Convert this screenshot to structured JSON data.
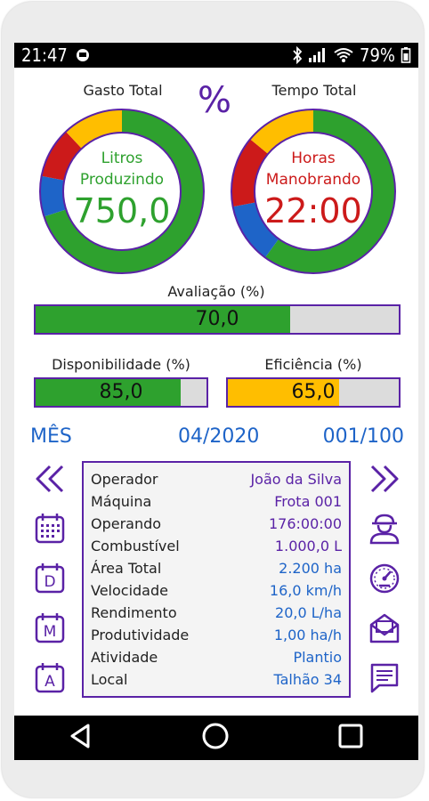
{
  "status_bar": {
    "time": "21:47",
    "battery": "79%",
    "icons": [
      "app-notification-icon",
      "bluetooth-icon",
      "signal-icon",
      "wifi-icon",
      "battery-icon"
    ]
  },
  "gauges": {
    "left": {
      "title": "Gasto Total",
      "line1": "Litros",
      "line2": "Produzindo",
      "value": "750,0",
      "segments": [
        {
          "color": "#2ea12e",
          "fraction": 0.7
        },
        {
          "color": "#1e64c8",
          "fraction": 0.08
        },
        {
          "color": "#cc1a1a",
          "fraction": 0.1
        },
        {
          "color": "#ffbe00",
          "fraction": 0.12
        }
      ]
    },
    "right": {
      "title": "Tempo Total",
      "line1": "Horas",
      "line2": "Manobrando",
      "value": "22:00",
      "segments": [
        {
          "color": "#2ea12e",
          "fraction": 0.6
        },
        {
          "color": "#1e64c8",
          "fraction": 0.12
        },
        {
          "color": "#cc1a1a",
          "fraction": 0.14
        },
        {
          "color": "#ffbe00",
          "fraction": 0.14
        }
      ]
    },
    "percent_symbol": "%"
  },
  "bars": {
    "avaliacao": {
      "label": "Avaliação (%)",
      "value_text": "70,0",
      "fill_fraction": 0.7,
      "color": "#2ea12e"
    },
    "disponibilidade": {
      "label": "Disponibilidade (%)",
      "value_text": "85,0",
      "fill_fraction": 0.85,
      "color": "#2ea12e"
    },
    "eficiencia": {
      "label": "Eficiência (%)",
      "value_text": "65,0",
      "fill_fraction": 0.65,
      "color": "#ffbe00"
    }
  },
  "period": {
    "mode": "MÊS",
    "date": "04/2020",
    "counter": "001/100"
  },
  "details": [
    {
      "key": "Operador",
      "value": "João da Silva",
      "color": "#5a22a6"
    },
    {
      "key": "Máquina",
      "value": "Frota 001",
      "color": "#5a22a6"
    },
    {
      "key": "Operando",
      "value": "176:00:00",
      "color": "#5a22a6"
    },
    {
      "key": "Combustível",
      "value": "1.000,0 L",
      "color": "#5a22a6"
    },
    {
      "key": "Área Total",
      "value": "2.200 ha",
      "color": "#1e64c8"
    },
    {
      "key": "Velocidade",
      "value": "16,0 km/h",
      "color": "#1e64c8"
    },
    {
      "key": "Rendimento",
      "value": "20,0 L/ha",
      "color": "#1e64c8"
    },
    {
      "key": "Produtividade",
      "value": "1,00 ha/h",
      "color": "#1e64c8"
    },
    {
      "key": "Atividade",
      "value": "Plantio",
      "color": "#1e64c8"
    },
    {
      "key": "Local",
      "value": "Talhão 34",
      "color": "#1e64c8"
    }
  ],
  "left_icons": [
    "rewind-icon",
    "calendar-icon",
    "calendar-day-icon",
    "calendar-month-icon",
    "calendar-year-icon"
  ],
  "left_icon_letters": {
    "day": "D",
    "month": "M",
    "year": "A"
  },
  "right_icons": [
    "fast-forward-icon",
    "operator-icon",
    "gauge-icon",
    "inbox-mail-icon",
    "message-icon"
  ],
  "nav": [
    "back-icon",
    "home-icon",
    "recents-icon"
  ],
  "colors": {
    "accent": "#5a22a6",
    "blue": "#1e64c8",
    "green": "#2ea12e",
    "red": "#cc1a1a",
    "yellow": "#ffbe00"
  }
}
